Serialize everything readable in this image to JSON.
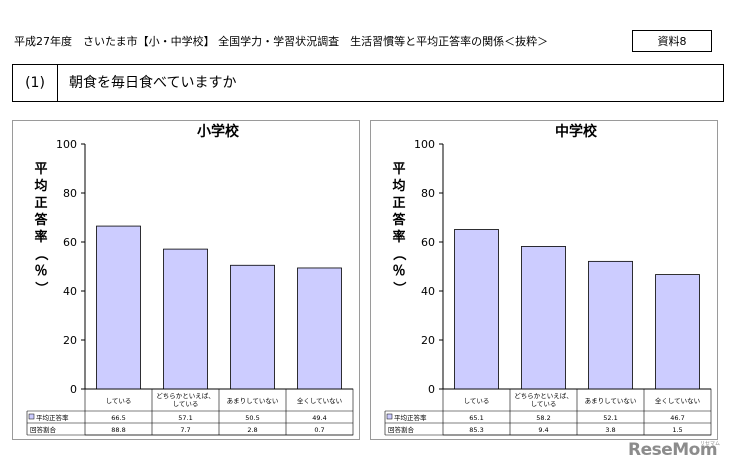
{
  "header": {
    "title": "平成27年度　さいたま市【小・中学校】 全国学力・学習状況調査　生活習慣等と平均正答率の関係＜抜粋＞",
    "ref_label": "資料8"
  },
  "question": {
    "number": "(1)",
    "text": "朝食を毎日食べていますか"
  },
  "logo": {
    "text": "ReseMom",
    "sub": "リセマム"
  },
  "chart_data": [
    {
      "type": "bar",
      "title": "小学校",
      "ylabel": "平均正答率（％）",
      "ylim": [
        0,
        100
      ],
      "yticks": [
        "0",
        "20",
        "40",
        "60",
        "80",
        "100"
      ],
      "categories": [
        "している",
        "どちらかといえば、している",
        "あまりしていない",
        "全くしていない"
      ],
      "category_lines": [
        [
          "している"
        ],
        [
          "どちらかといえば、",
          "している"
        ],
        [
          "あまりしていない"
        ],
        [
          "全くしていない"
        ]
      ],
      "series": [
        {
          "name": "平均正答率",
          "values": [
            66.5,
            57.1,
            50.5,
            49.4
          ],
          "display": [
            "66.5",
            "57.1",
            "50.5",
            "49.4"
          ]
        }
      ],
      "table": {
        "rows": [
          {
            "label": "平均正答率",
            "values": [
              "66.5",
              "57.1",
              "50.5",
              "49.4"
            ]
          },
          {
            "label": "回答割合",
            "values": [
              "88.8",
              "7.7",
              "2.8",
              "0.7"
            ]
          }
        ]
      },
      "grid": false,
      "bar_color": "#ccccff"
    },
    {
      "type": "bar",
      "title": "中学校",
      "ylabel": "平均正答率（％）",
      "ylim": [
        0,
        100
      ],
      "yticks": [
        "0",
        "20",
        "40",
        "60",
        "80",
        "100"
      ],
      "categories": [
        "している",
        "どちらかといえば、している",
        "あまりしていない",
        "全くしていない"
      ],
      "category_lines": [
        [
          "している"
        ],
        [
          "どちらかといえば、",
          "している"
        ],
        [
          "あまりしていない"
        ],
        [
          "全くしていない"
        ]
      ],
      "series": [
        {
          "name": "平均正答率",
          "values": [
            65.1,
            58.2,
            52.1,
            46.7
          ],
          "display": [
            "65.1",
            "58.2",
            "52.1",
            "46.7"
          ]
        }
      ],
      "table": {
        "rows": [
          {
            "label": "平均正答率",
            "values": [
              "65.1",
              "58.2",
              "52.1",
              "46.7"
            ]
          },
          {
            "label": "回答割合",
            "values": [
              "85.3",
              "9.4",
              "3.8",
              "1.5"
            ]
          }
        ]
      },
      "grid": false,
      "bar_color": "#ccccff"
    }
  ]
}
